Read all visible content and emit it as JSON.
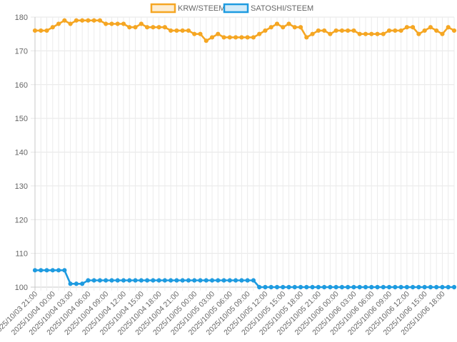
{
  "chart_data": {
    "type": "line",
    "title": "",
    "xlabel": "",
    "ylabel": "",
    "ylim": [
      100,
      180
    ],
    "y_ticks": [
      100,
      110,
      120,
      130,
      140,
      150,
      160,
      170,
      180
    ],
    "grid": true,
    "legend_position": "top",
    "x_tick_labels": [
      "2025/10/03 21:00",
      "2025/10/04 00:00",
      "2025/10/04 03:00",
      "2025/10/04 06:00",
      "2025/10/04 09:00",
      "2025/10/04 12:00",
      "2025/10/04 15:00",
      "2025/10/04 18:00",
      "2025/10/04 21:00",
      "2025/10/05 00:00",
      "2025/10/05 03:00",
      "2025/10/05 06:00",
      "2025/10/05 09:00",
      "2025/10/05 12:00",
      "2025/10/05 15:00",
      "2025/10/05 18:00",
      "2025/10/05 21:00",
      "2025/10/06 00:00",
      "2025/10/06 03:00",
      "2025/10/06 06:00",
      "2025/10/06 09:00",
      "2025/10/06 12:00",
      "2025/10/06 15:00",
      "2025/10/06 18:00"
    ],
    "x_interval": "1 hour",
    "x_start": "2025/10/03 21:00",
    "series": [
      {
        "name": "KRW/STEEM",
        "color": "#f5a623",
        "values": [
          176,
          176,
          176,
          177,
          178,
          179,
          178,
          179,
          179,
          179,
          179,
          179,
          178,
          178,
          178,
          178,
          177,
          177,
          178,
          177,
          177,
          177,
          177,
          176,
          176,
          176,
          176,
          175,
          175,
          173,
          174,
          175,
          174,
          174,
          174,
          174,
          174,
          174,
          175,
          176,
          177,
          178,
          177,
          178,
          177,
          177,
          174,
          175,
          176,
          176,
          175,
          176,
          176,
          176,
          176,
          175,
          175,
          175,
          175,
          175,
          176,
          176,
          176,
          177,
          177,
          175,
          176,
          177,
          176,
          175,
          177,
          176
        ]
      },
      {
        "name": "SATOSHI/STEEM",
        "color": "#1e9be0",
        "values": [
          105,
          105,
          105,
          105,
          105,
          105,
          101,
          101,
          101,
          102,
          102,
          102,
          102,
          102,
          102,
          102,
          102,
          102,
          102,
          102,
          102,
          102,
          102,
          102,
          102,
          102,
          102,
          102,
          102,
          102,
          102,
          102,
          102,
          102,
          102,
          102,
          102,
          102,
          100,
          100,
          100,
          100,
          100,
          100,
          100,
          100,
          100,
          100,
          100,
          100,
          100,
          100,
          100,
          100,
          100,
          100,
          100,
          100,
          100,
          100,
          100,
          100,
          100,
          100,
          100,
          100,
          100,
          100,
          100,
          100,
          100,
          100
        ]
      }
    ]
  }
}
